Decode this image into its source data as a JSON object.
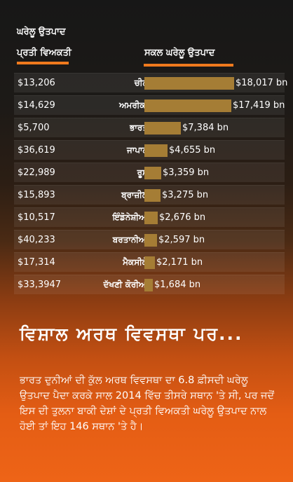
{
  "header": {
    "per_capita_line1": "ਘਰੇਲੂ ਉਤਪਾਦ",
    "per_capita_line2": "ਪ੍ਰਤੀ ਵਿਅਕਤੀ",
    "gdp_label": "ਸਕਲ ਘਰੇਲੂ ਉਤਪਾਦ"
  },
  "chart_data": {
    "type": "bar",
    "categories": [
      "ਚੀਨ",
      "ਅਮਰੀਕਾ",
      "ਭਾਰਤ",
      "ਜਾਪਾਨ",
      "ਰੂਸ",
      "ਬ੍ਰਾਜ਼ੀਲ",
      "ਇੰਡੋਨੇਸ਼ੀਆ",
      "ਬਰਤਾਨੀਆ",
      "ਮੈਕਸੀਕੋ",
      "ਦੱਖਣੀ ਕੋਰੀਆ"
    ],
    "values": [
      18017,
      17419,
      7384,
      4655,
      3359,
      3275,
      2676,
      2597,
      2171,
      1684
    ],
    "value_labels": [
      "$18,017 bn",
      "$17,419 bn",
      "$7,384 bn",
      "$4,655 bn",
      "$3,359 bn",
      "$3,275 bn",
      "$2,676 bn",
      "$2,597 bn",
      "$2,171 bn",
      "$1,684 bn"
    ],
    "per_capita": [
      "$13,206",
      "$14,629",
      "$5,700",
      "$36,619",
      "$22,989",
      "$15,893",
      "$10,517",
      "$40,233",
      "$17,314",
      "$33,3947"
    ],
    "bar_color": "#a57d35"
  },
  "headline": "ਵਿਸ਼ਾਲ ਅਰਥ ਵਿਵਸਥਾ ਪਰ...",
  "body": "ਭਾਰਤ ਦੁਨੀਆਂ ਦੀ ਕੁੱਲ ਅਰਥ ਵਿਵਸਥਾ ਦਾ 6.8 ਫ਼ੀਸਦੀ ਘਰੇਲੂ ਉਤਪਾਦ ਪੈਦਾ ਕਰਕੇ ਸਾਲ 2014 ਵਿੱਚ ਤੀਸਰੇ ਸਥਾਨ 'ਤੇ ਸੀ, ਪਰ ਜਦੋਂ ਇਸ ਦੀ ਤੁਲਨਾ ਬਾਕੀ ਦੇਸ਼ਾਂ ਦੇ ਪ੍ਰਤੀ ਵਿਅਕਤੀ ਘਰੇਲੂ ਉਤਪਾਦ ਨਾਲ ਹੋਈ ਤਾਂ ਇਹ 146 ਸਥਾਨ 'ਤੇ ਹੈ।"
}
